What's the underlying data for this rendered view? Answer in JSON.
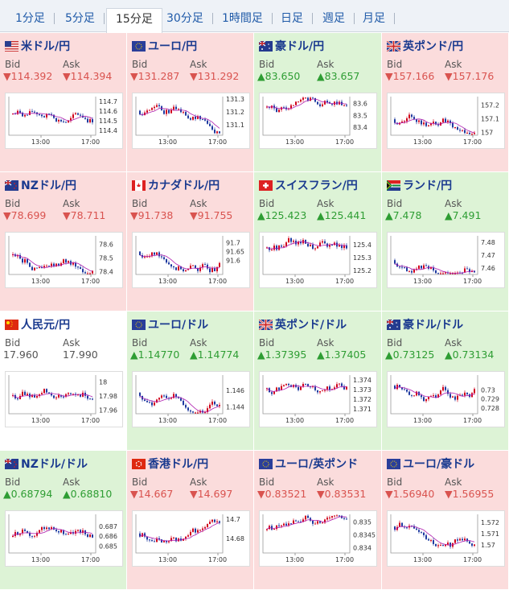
{
  "tabs": [
    {
      "label": "1分足",
      "active": false
    },
    {
      "label": "5分足",
      "active": false
    },
    {
      "label": "15分足",
      "active": true
    },
    {
      "label": "30分足",
      "active": false
    },
    {
      "label": "1時間足",
      "active": false
    },
    {
      "label": "日足",
      "active": false
    },
    {
      "label": "週足",
      "active": false
    },
    {
      "label": "月足",
      "active": false
    }
  ],
  "colors": {
    "up_candle": "#d0021b",
    "down_candle": "#1f3aa0",
    "ma_line": "#b020b0",
    "down_bg": "#fbdcdc",
    "up_bg": "#ddf3d6"
  },
  "cards": [
    {
      "pair": "米ドル/円",
      "flag": "us-flag-icon",
      "trend": "down",
      "bid_label": "Bid",
      "ask_label": "Ask",
      "bid": "▼114.392",
      "ask": "▼114.394",
      "chart_data": {
        "type": "candlestick",
        "x_ticks": [
          "13:00",
          "17:00"
        ],
        "y_ticks": [
          "114.7",
          "114.6",
          "114.5",
          "114.4"
        ],
        "ylim": [
          114.35,
          114.75
        ]
      }
    },
    {
      "pair": "ユーロ/円",
      "flag": "eu-flag-icon",
      "trend": "down",
      "bid_label": "Bid",
      "ask_label": "Ask",
      "bid": "▼131.287",
      "ask": "▼131.292",
      "chart_data": {
        "type": "candlestick",
        "x_ticks": [
          "13:00",
          "17:00"
        ],
        "y_ticks": [
          "131.3",
          "131.2",
          "131.1"
        ],
        "ylim": [
          131.02,
          131.32
        ]
      }
    },
    {
      "pair": "豪ドル/円",
      "flag": "au-flag-icon",
      "trend": "up",
      "bid_label": "Bid",
      "ask_label": "Ask",
      "bid": "▲83.650",
      "ask": "▲83.657",
      "chart_data": {
        "type": "candlestick",
        "x_ticks": [
          "13:00",
          "17:00"
        ],
        "y_ticks": [
          "83.6",
          "83.5",
          "83.4"
        ],
        "ylim": [
          83.33,
          83.66
        ]
      }
    },
    {
      "pair": "英ポンド/円",
      "flag": "uk-flag-icon",
      "trend": "down",
      "bid_label": "Bid",
      "ask_label": "Ask",
      "bid": "▼157.166",
      "ask": "▼157.176",
      "chart_data": {
        "type": "candlestick",
        "x_ticks": [
          "13:00",
          "17:00"
        ],
        "y_ticks": [
          "157.2",
          "157.1",
          "157"
        ],
        "ylim": [
          156.98,
          157.26
        ]
      }
    },
    {
      "pair": "NZドル/円",
      "flag": "nz-flag-icon",
      "trend": "down",
      "bid_label": "Bid",
      "ask_label": "Ask",
      "bid": "▼78.699",
      "ask": "▼78.711",
      "chart_data": {
        "type": "candlestick",
        "x_ticks": [
          "13:00",
          "17:00"
        ],
        "y_ticks": [
          "78.6",
          "78.5",
          "78.4"
        ],
        "ylim": [
          78.38,
          78.66
        ]
      }
    },
    {
      "pair": "カナダドル/円",
      "flag": "ca-flag-icon",
      "trend": "down",
      "bid_label": "Bid",
      "ask_label": "Ask",
      "bid": "▼91.738",
      "ask": "▼91.755",
      "chart_data": {
        "type": "candlestick",
        "x_ticks": [
          "13:00",
          "17:00"
        ],
        "y_ticks": [
          "91.7",
          "91.65",
          "91.6"
        ],
        "ylim": [
          91.52,
          91.74
        ]
      }
    },
    {
      "pair": "スイスフラン/円",
      "flag": "ch-flag-icon",
      "trend": "up",
      "bid_label": "Bid",
      "ask_label": "Ask",
      "bid": "▲125.423",
      "ask": "▲125.441",
      "chart_data": {
        "type": "candlestick",
        "x_ticks": [
          "13:00",
          "17:00"
        ],
        "y_ticks": [
          "125.4",
          "125.3",
          "125.2"
        ],
        "ylim": [
          125.17,
          125.47
        ]
      }
    },
    {
      "pair": "ランド/円",
      "flag": "za-flag-icon",
      "trend": "up",
      "bid_label": "Bid",
      "ask_label": "Ask",
      "bid": "▲7.478",
      "ask": "▲7.491",
      "chart_data": {
        "type": "candlestick",
        "x_ticks": [
          "13:00",
          "17:00"
        ],
        "y_ticks": [
          "7.48",
          "7.47",
          "7.46"
        ],
        "ylim": [
          7.455,
          7.485
        ]
      }
    },
    {
      "pair": "人民元/円",
      "flag": "cn-flag-icon",
      "trend": "flat",
      "bid_label": "Bid",
      "ask_label": "Ask",
      "bid": "17.960",
      "ask": "17.990",
      "chart_data": {
        "type": "candlestick",
        "x_ticks": [
          "13:00",
          "17:00"
        ],
        "y_ticks": [
          "18",
          "17.98",
          "17.96"
        ],
        "ylim": [
          17.955,
          18.01
        ]
      }
    },
    {
      "pair": "ユーロ/ドル",
      "flag": "eu-flag-icon",
      "trend": "up",
      "bid_label": "Bid",
      "ask_label": "Ask",
      "bid": "▲1.14770",
      "ask": "▲1.14774",
      "chart_data": {
        "type": "candlestick",
        "x_ticks": [
          "13:00",
          "17:00"
        ],
        "y_ticks": [
          "1.146",
          "1.144"
        ],
        "ylim": [
          1.1432,
          1.1478
        ]
      }
    },
    {
      "pair": "英ポンド/ドル",
      "flag": "uk-flag-icon",
      "trend": "up",
      "bid_label": "Bid",
      "ask_label": "Ask",
      "bid": "▲1.37395",
      "ask": "▲1.37405",
      "chart_data": {
        "type": "candlestick",
        "x_ticks": [
          "13:00",
          "17:00"
        ],
        "y_ticks": [
          "1.374",
          "1.373",
          "1.372",
          "1.371"
        ],
        "ylim": [
          1.3705,
          1.3745
        ]
      }
    },
    {
      "pair": "豪ドル/ドル",
      "flag": "au-flag-icon",
      "trend": "up",
      "bid_label": "Bid",
      "ask_label": "Ask",
      "bid": "▲0.73125",
      "ask": "▲0.73134",
      "chart_data": {
        "type": "candlestick",
        "x_ticks": [
          "13:00",
          "17:00"
        ],
        "y_ticks": [
          "0.73",
          "0.729",
          "0.728"
        ],
        "ylim": [
          0.7274,
          0.7316
        ]
      }
    },
    {
      "pair": "NZドル/ドル",
      "flag": "nz-flag-icon",
      "trend": "up",
      "bid_label": "Bid",
      "ask_label": "Ask",
      "bid": "▲0.68794",
      "ask": "▲0.68810",
      "chart_data": {
        "type": "candlestick",
        "x_ticks": [
          "13:00",
          "17:00"
        ],
        "y_ticks": [
          "0.687",
          "0.686",
          "0.685"
        ],
        "ylim": [
          0.6843,
          0.6882
        ]
      }
    },
    {
      "pair": "香港ドル/円",
      "flag": "hk-flag-icon",
      "trend": "down",
      "bid_label": "Bid",
      "ask_label": "Ask",
      "bid": "▼14.667",
      "ask": "▼14.697",
      "chart_data": {
        "type": "candlestick",
        "x_ticks": [
          "13:00",
          "17:00"
        ],
        "y_ticks": [
          "14.7",
          "14.68"
        ],
        "ylim": [
          14.665,
          14.705
        ]
      }
    },
    {
      "pair": "ユーロ/英ポンド",
      "flag": "eu-flag-icon",
      "trend": "down",
      "bid_label": "Bid",
      "ask_label": "Ask",
      "bid": "▼0.83521",
      "ask": "▼0.83531",
      "chart_data": {
        "type": "candlestick",
        "x_ticks": [
          "13:00",
          "17:00"
        ],
        "y_ticks": [
          "0.835",
          "0.8345",
          "0.834"
        ],
        "ylim": [
          0.8338,
          0.8353
        ]
      }
    },
    {
      "pair": "ユーロ/豪ドル",
      "flag": "eu-flag-icon",
      "trend": "down",
      "bid_label": "Bid",
      "ask_label": "Ask",
      "bid": "▼1.56940",
      "ask": "▼1.56955",
      "chart_data": {
        "type": "candlestick",
        "x_ticks": [
          "13:00",
          "17:00"
        ],
        "y_ticks": [
          "1.572",
          "1.571",
          "1.57"
        ],
        "ylim": [
          1.5693,
          1.5727
        ]
      }
    }
  ]
}
